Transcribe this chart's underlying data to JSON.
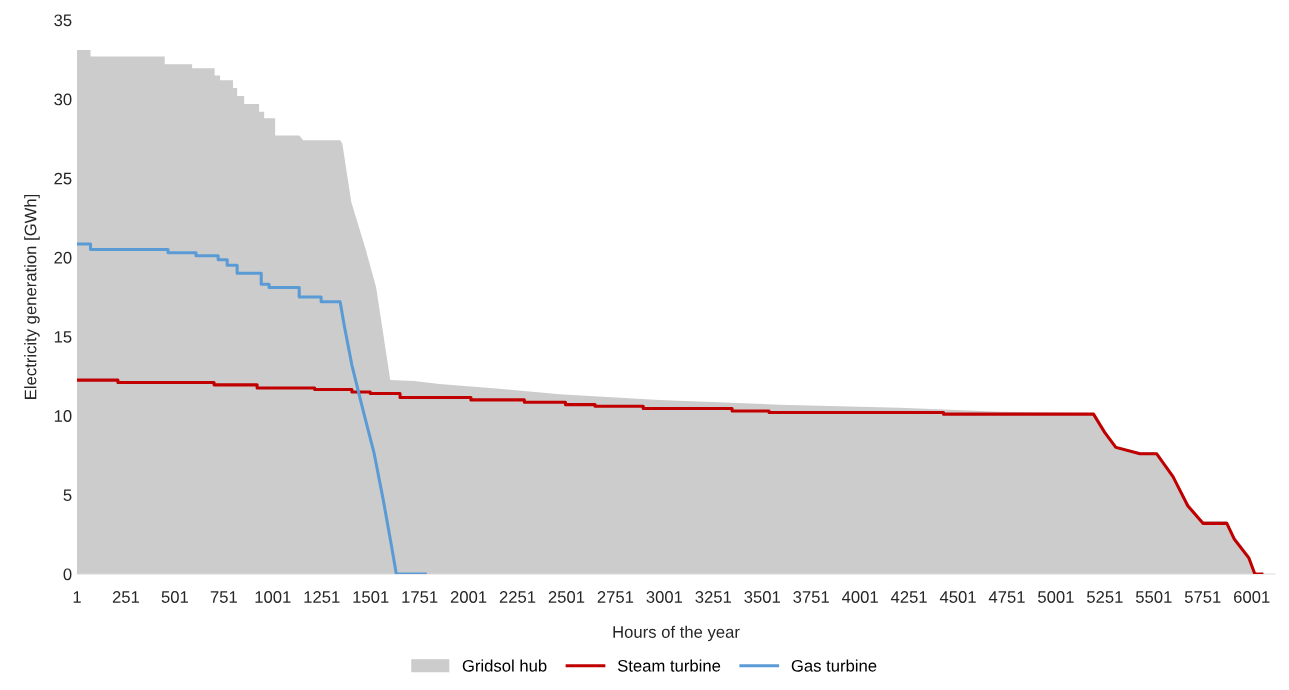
{
  "chart_data": {
    "type": "line",
    "xlabel": "Hours of the year",
    "ylabel": "Electricity generation [GWh]",
    "xlim": [
      1,
      6120
    ],
    "xticks": [
      1,
      251,
      501,
      751,
      1001,
      1251,
      1501,
      1751,
      2001,
      2251,
      2501,
      2751,
      3001,
      3251,
      3501,
      3751,
      4001,
      4251,
      4501,
      4751,
      5001,
      5251,
      5501,
      5751,
      6001
    ],
    "ylim": [
      0,
      35
    ],
    "yticks": [
      0,
      5,
      10,
      15,
      20,
      25,
      30,
      35
    ],
    "grid": false,
    "legend": "bottom",
    "series": [
      {
        "name": "Gridsol hub",
        "type": "area",
        "color": "#cccccc",
        "x": [
          1,
          70,
          70,
          449,
          449,
          589,
          589,
          704,
          704,
          732,
          732,
          798,
          798,
          819,
          819,
          855,
          855,
          931,
          931,
          957,
          957,
          982,
          982,
          1013,
          1013,
          1136,
          1136,
          1156,
          1156,
          1248,
          1248,
          1345,
          1356,
          1402,
          1478,
          1529,
          1601,
          1724,
          1852,
          2158,
          2465,
          2976,
          3590,
          4203,
          4714,
          5190,
          5251,
          5307,
          5430,
          5516,
          5599,
          5675,
          5752,
          5874,
          5912,
          5987,
          6023
        ],
        "values": [
          33.1,
          33.1,
          32.7,
          32.7,
          32.2,
          32.2,
          31.95,
          31.95,
          31.5,
          31.5,
          31.2,
          31.2,
          30.7,
          30.7,
          30.2,
          30.2,
          29.7,
          29.7,
          29.2,
          29.2,
          28.8,
          28.8,
          28.8,
          28.8,
          27.7,
          27.7,
          27.7,
          27.4,
          27.4,
          27.4,
          27.4,
          27.4,
          27.2,
          23.5,
          20.4,
          18.1,
          12.25,
          12.2,
          12.0,
          11.7,
          11.35,
          11.0,
          10.7,
          10.5,
          10.25,
          10.15,
          9.1,
          8.1,
          7.7,
          7.7,
          6.3,
          4.5,
          3.35,
          3.35,
          2.4,
          1.2,
          0
        ]
      },
      {
        "name": "Steam turbine",
        "color": "#c00000",
        "x": [
          1,
          210,
          210,
          701,
          701,
          921,
          921,
          1215,
          1215,
          1405,
          1405,
          1499,
          1499,
          1651,
          1651,
          2013,
          2013,
          2286,
          2286,
          2496,
          2496,
          2647,
          2647,
          2893,
          2893,
          3347,
          3347,
          3536,
          3536,
          4427,
          4427,
          5193,
          5250,
          5307,
          5430,
          5515,
          5599,
          5675,
          5752,
          5874,
          5912,
          5987,
          6017,
          6053
        ],
        "values": [
          12.25,
          12.25,
          12.1,
          12.1,
          11.95,
          11.95,
          11.75,
          11.75,
          11.65,
          11.65,
          11.5,
          11.5,
          11.4,
          11.4,
          11.15,
          11.15,
          11.0,
          11.0,
          10.85,
          10.85,
          10.7,
          10.7,
          10.6,
          10.6,
          10.45,
          10.45,
          10.3,
          10.3,
          10.2,
          10.2,
          10.1,
          10.1,
          8.95,
          8.0,
          7.6,
          7.6,
          6.15,
          4.3,
          3.2,
          3.2,
          2.2,
          1.0,
          0,
          0
        ]
      },
      {
        "name": "Gas turbine",
        "color": "#5b9bd5",
        "x": [
          1,
          70,
          70,
          466,
          466,
          609,
          609,
          722,
          722,
          768,
          768,
          819,
          819,
          855,
          855,
          942,
          942,
          982,
          982,
          1008,
          1008,
          1136,
          1136,
          1156,
          1156,
          1248,
          1248,
          1263,
          1263,
          1345,
          1366,
          1405,
          1461,
          1519,
          1565,
          1604,
          1632,
          1780
        ],
        "values": [
          20.85,
          20.85,
          20.5,
          20.5,
          20.3,
          20.3,
          20.1,
          20.1,
          19.85,
          19.85,
          19.5,
          19.5,
          19.0,
          19.0,
          19.0,
          19.0,
          18.3,
          18.3,
          18.1,
          18.1,
          18.1,
          18.1,
          17.5,
          17.5,
          17.5,
          17.5,
          17.2,
          17.2,
          17.2,
          17.2,
          15.7,
          13.2,
          10.4,
          7.6,
          4.7,
          2.0,
          0,
          0
        ]
      }
    ]
  }
}
